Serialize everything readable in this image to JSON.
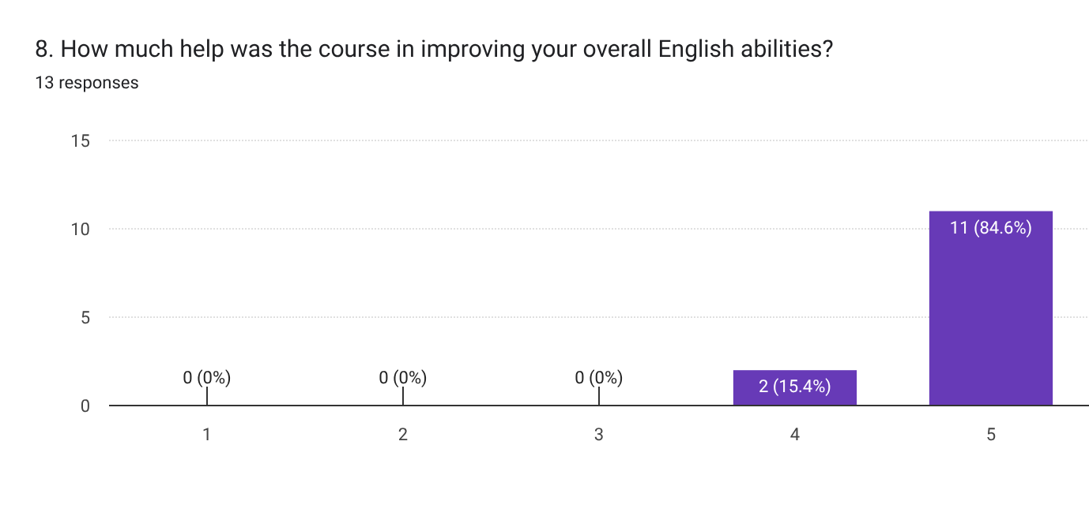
{
  "chart_data": {
    "type": "bar",
    "title": "8. How much help was the course in improving your overall English abilities?",
    "subtitle": "13 responses",
    "categories": [
      "1",
      "2",
      "3",
      "4",
      "5"
    ],
    "values": [
      0,
      0,
      0,
      2,
      11
    ],
    "value_labels": [
      "0 (0%)",
      "0 (0%)",
      "0 (0%)",
      "2 (15.4%)",
      "11 (84.6%)"
    ],
    "color": "#673ab7",
    "ylim": [
      0,
      15
    ],
    "yticks": [
      0,
      5,
      10,
      15
    ],
    "grid": "y"
  }
}
